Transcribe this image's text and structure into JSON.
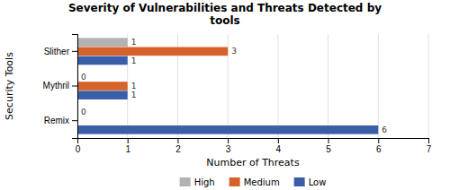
{
  "chart_data": {
    "type": "bar",
    "orientation": "horizontal",
    "title": "Severity of Vulnerabilities and Threats Detected by\ntools",
    "xlabel": "Number of Threats",
    "ylabel": "Security Tools",
    "categories": [
      "Slither",
      "Mythril",
      "Remix"
    ],
    "series": [
      {
        "name": "High",
        "color": "#b2b2b2",
        "values": [
          1,
          0,
          0
        ]
      },
      {
        "name": "Medium",
        "color": "#d4622a",
        "values": [
          3,
          1,
          0
        ],
        "value_labels": [
          "3",
          "1",
          null
        ]
      },
      {
        "name": "Low",
        "color": "#3a5ea8",
        "values": [
          1,
          1,
          6
        ]
      }
    ],
    "xlim": [
      0,
      7
    ],
    "xticks": [
      0,
      1,
      2,
      3,
      4,
      5,
      6,
      7
    ],
    "grid": true,
    "legend": "bottom",
    "data_labels": true
  }
}
